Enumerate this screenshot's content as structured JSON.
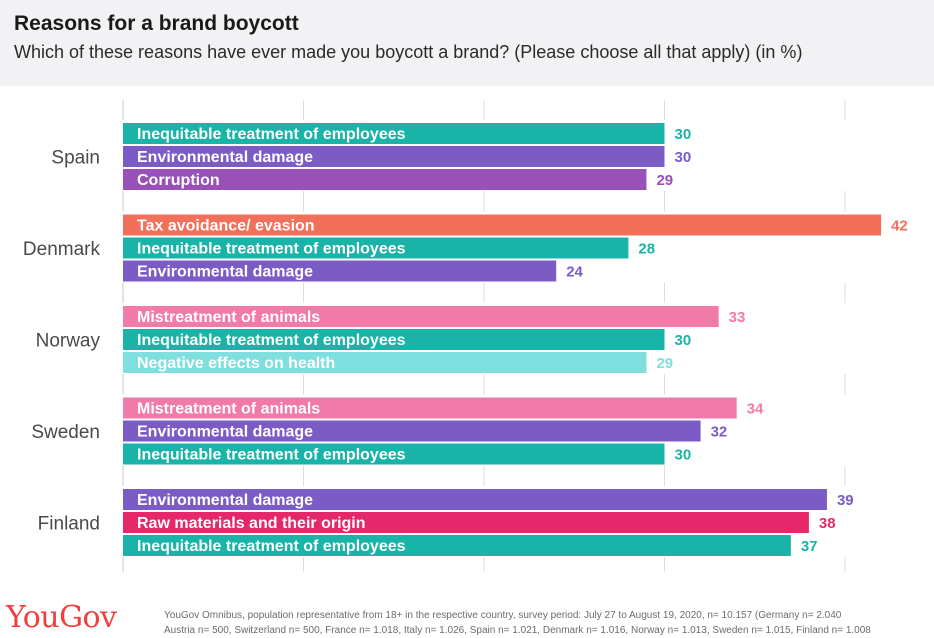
{
  "header": {
    "title": "Reasons for a brand boycott",
    "subtitle": "Which of these reasons have ever made you boycott a brand? (Please choose all that apply) (in %)"
  },
  "footer": {
    "logo": "YouGov",
    "note_line1": "YouGov Omnibus, population representative from 18+ in the respective country, survey period: July 27 to August 19, 2020, n= 10.157 (Germany n= 2.040",
    "note_line2": "Austria n= 500, Switzerland n= 500, France n= 1.018, Italy n= 1.026, Spain n= 1.021, Denmark n= 1.016, Norway n= 1.013, Sweden n= 1.015, Finland n= 1.008"
  },
  "chart_data": {
    "type": "bar",
    "orientation": "horizontal",
    "title": "Reasons for a brand boycott",
    "xlim": [
      0,
      45
    ],
    "grid": true,
    "groups": [
      {
        "country": "Spain",
        "bars": [
          {
            "label": "Inequitable treatment of employees",
            "value": 30,
            "color": "#19b3a8",
            "value_color": "#19b3a8"
          },
          {
            "label": "Environmental damage",
            "value": 30,
            "color": "#7b5cc4",
            "value_color": "#7b5cc4"
          },
          {
            "label": "Corruption",
            "value": 29,
            "color": "#9950b8",
            "value_color": "#9950b8"
          }
        ]
      },
      {
        "country": "Denmark",
        "bars": [
          {
            "label": "Tax avoidance/ evasion",
            "value": 42,
            "color": "#f26f5a",
            "value_color": "#f26f5a"
          },
          {
            "label": "Inequitable treatment of employees",
            "value": 28,
            "color": "#19b3a8",
            "value_color": "#19b3a8"
          },
          {
            "label": "Environmental damage",
            "value": 24,
            "color": "#7b5cc4",
            "value_color": "#7b5cc4"
          }
        ]
      },
      {
        "country": "Norway",
        "bars": [
          {
            "label": "Mistreatment of animals",
            "value": 33,
            "color": "#f27aa8",
            "value_color": "#f27aa8"
          },
          {
            "label": "Inequitable treatment of employees",
            "value": 30,
            "color": "#19b3a8",
            "value_color": "#19b3a8"
          },
          {
            "label": "Negative effects on health",
            "value": 29,
            "color": "#7fdede",
            "value_color": "#7fdede"
          }
        ]
      },
      {
        "country": "Sweden",
        "bars": [
          {
            "label": "Mistreatment of animals",
            "value": 34,
            "color": "#f27aa8",
            "value_color": "#f27aa8"
          },
          {
            "label": "Environmental damage",
            "value": 32,
            "color": "#7b5cc4",
            "value_color": "#7b5cc4"
          },
          {
            "label": "Inequitable treatment of employees",
            "value": 30,
            "color": "#19b3a8",
            "value_color": "#19b3a8"
          }
        ]
      },
      {
        "country": "Finland",
        "bars": [
          {
            "label": "Environmental damage",
            "value": 39,
            "color": "#7b5cc4",
            "value_color": "#7b5cc4"
          },
          {
            "label": "Raw materials and their origin",
            "value": 38,
            "color": "#e6286a",
            "value_color": "#e6286a"
          },
          {
            "label": "Inequitable treatment of employees",
            "value": 37,
            "color": "#19b3a8",
            "value_color": "#19b3a8"
          }
        ]
      }
    ]
  }
}
